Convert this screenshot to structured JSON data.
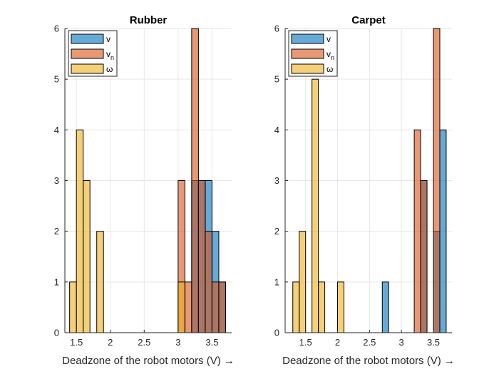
{
  "figure": {
    "colors": {
      "v": "#0072BD",
      "v_n": "#D95319",
      "omega": "#EDB120",
      "bar_alpha": 0.6,
      "grid": "#e6e6e6",
      "axis": "#262626"
    }
  },
  "chart_data": [
    {
      "type": "bar",
      "title": "Rubber",
      "xlabel": "Deadzone of the robot motors (V) →",
      "ylabel": "",
      "xlim": [
        1.33,
        3.79
      ],
      "ylim": [
        0,
        6
      ],
      "xticks": [
        "1.5",
        "2",
        "2.5",
        "3",
        "3.5"
      ],
      "xtick_values": [
        1.5,
        2,
        2.5,
        3,
        3.5
      ],
      "yticks": [
        "0",
        "1",
        "2",
        "3",
        "4",
        "5",
        "6"
      ],
      "ytick_values": [
        0,
        1,
        2,
        3,
        4,
        5,
        6
      ],
      "grid": true,
      "legend_position": "top-left",
      "bin_width": 0.1,
      "series": [
        {
          "name": "v",
          "key": "v",
          "legend": "v",
          "legend_sub": "",
          "bin_starts": [
            3.2,
            3.3,
            3.4,
            3.5,
            3.6
          ],
          "counts": [
            3,
            3,
            3,
            2,
            1
          ]
        },
        {
          "name": "v_n",
          "key": "v_n",
          "legend": "v",
          "legend_sub": "n",
          "bin_starts": [
            3.0,
            3.1,
            3.2,
            3.3,
            3.4,
            3.5,
            3.6
          ],
          "counts": [
            3,
            1,
            6,
            3,
            2,
            1,
            1
          ]
        },
        {
          "name": "ω",
          "key": "omega",
          "legend": "ω",
          "legend_sub": "",
          "bin_starts": [
            1.4,
            1.5,
            1.6,
            1.7,
            1.8,
            1.9,
            2.0,
            2.1,
            2.2,
            2.3,
            2.4,
            2.5,
            2.6,
            2.7,
            2.8,
            2.9,
            3.0
          ],
          "counts": [
            1,
            4,
            3,
            0,
            2,
            0,
            0,
            0,
            0,
            0,
            0,
            0,
            0,
            0,
            0,
            0,
            1
          ]
        }
      ]
    },
    {
      "type": "bar",
      "title": "Carpet",
      "xlabel": "Deadzone of the robot motors (V) →",
      "ylabel": "",
      "xlim": [
        1.18,
        3.79
      ],
      "ylim": [
        0,
        6
      ],
      "xticks": [
        "1.5",
        "2",
        "2.5",
        "3",
        "3.5"
      ],
      "xtick_values": [
        1.5,
        2,
        2.5,
        3,
        3.5
      ],
      "yticks": [
        "0",
        "1",
        "2",
        "3",
        "4",
        "5",
        "6"
      ],
      "ytick_values": [
        0,
        1,
        2,
        3,
        4,
        5,
        6
      ],
      "grid": true,
      "legend_position": "top-left",
      "bin_width": 0.1,
      "series": [
        {
          "name": "v",
          "key": "v",
          "legend": "v",
          "legend_sub": "",
          "bin_starts": [
            2.7,
            2.8,
            2.9,
            3.0,
            3.1,
            3.2,
            3.3,
            3.4,
            3.5,
            3.6
          ],
          "counts": [
            1,
            0,
            0,
            0,
            0,
            0,
            3,
            0,
            2,
            4
          ]
        },
        {
          "name": "v_n",
          "key": "v_n",
          "legend": "v",
          "legend_sub": "n",
          "bin_starts": [
            3.2,
            3.3,
            3.4,
            3.5
          ],
          "counts": [
            4,
            3,
            0,
            6
          ]
        },
        {
          "name": "ω",
          "key": "omega",
          "legend": "ω",
          "legend_sub": "",
          "bin_starts": [
            1.3,
            1.4,
            1.5,
            1.6,
            1.7,
            1.8,
            1.9,
            2.0
          ],
          "counts": [
            1,
            2,
            0,
            5,
            1,
            0,
            0,
            1
          ]
        }
      ]
    }
  ]
}
